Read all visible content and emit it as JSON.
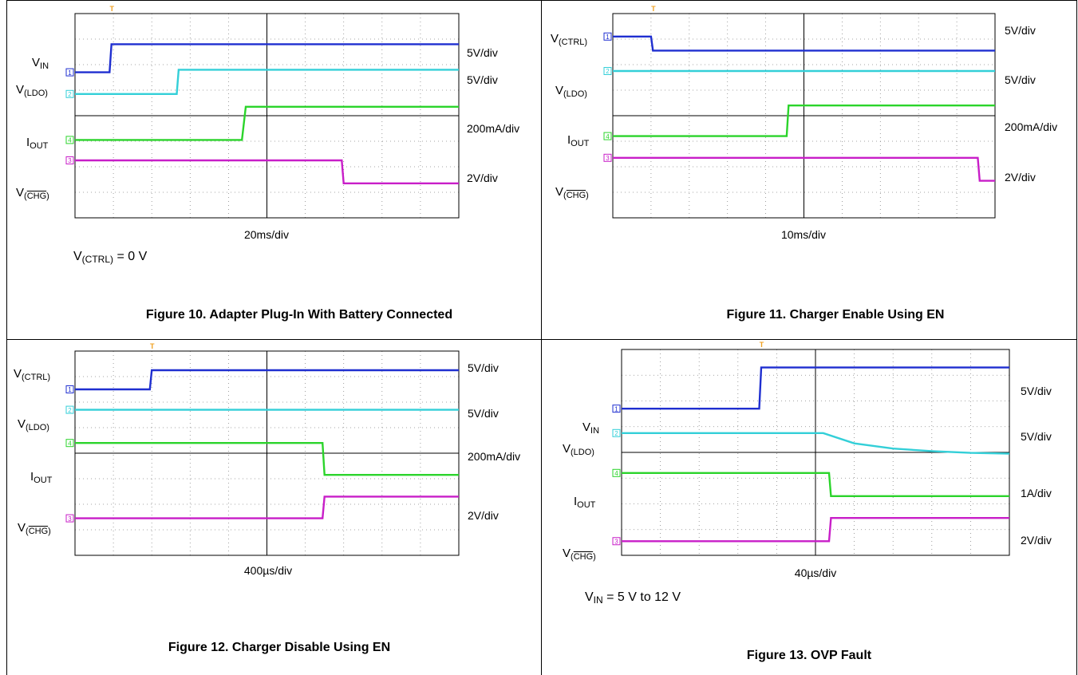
{
  "colors": {
    "ch1": "#1f2fd0",
    "ch2": "#33cfd8",
    "ch3": "#c81ec8",
    "ch4": "#2bd42b",
    "trigger": "#f0a020"
  },
  "panels": [
    {
      "id": "fig10",
      "caption": "Figure 10. Adapter Plug-In With Battery Connected",
      "time_div": "20ms/div",
      "note": {
        "main": "V",
        "sub": "(CTRL)",
        "tail": " = 0 V"
      },
      "labels": [
        {
          "main": "V",
          "sub": "IN",
          "ch": "1",
          "overline": false
        },
        {
          "main": "V",
          "sub": "(LDO)",
          "ch": "2",
          "overline": false
        },
        {
          "main": "I",
          "sub": "OUT",
          "ch": "4",
          "overline": false
        },
        {
          "main": "V",
          "sub": "CHG",
          "ch": "3",
          "overline": true
        }
      ],
      "scales": [
        "5V/div",
        "5V/div",
        "200mA/div",
        "2V/div"
      ]
    },
    {
      "id": "fig11",
      "caption": "Figure 11. Charger Enable Using EN",
      "time_div": "10ms/div",
      "note": null,
      "labels": [
        {
          "main": "V",
          "sub": "(CTRL)",
          "ch": "1",
          "overline": false
        },
        {
          "main": "V",
          "sub": "(LDO)",
          "ch": "2",
          "overline": false
        },
        {
          "main": "I",
          "sub": "OUT",
          "ch": "4",
          "overline": false
        },
        {
          "main": "V",
          "sub": "CHG",
          "ch": "3",
          "overline": true
        }
      ],
      "scales": [
        "5V/div",
        "5V/div",
        "200mA/div",
        "2V/div"
      ]
    },
    {
      "id": "fig12",
      "caption": "Figure 12. Charger Disable Using EN",
      "time_div": "400µs/div",
      "note": null,
      "labels": [
        {
          "main": "V",
          "sub": "(CTRL)",
          "ch": "1",
          "overline": false
        },
        {
          "main": "V",
          "sub": "(LDO)",
          "ch": "2",
          "overline": false
        },
        {
          "main": "I",
          "sub": "OUT",
          "ch": "4",
          "overline": false
        },
        {
          "main": "V",
          "sub": "CHG",
          "ch": "3",
          "overline": true
        }
      ],
      "scales": [
        "5V/div",
        "5V/div",
        "200mA/div",
        "2V/div"
      ]
    },
    {
      "id": "fig13",
      "caption": "Figure 13. OVP Fault",
      "time_div": "40µs/div",
      "note": {
        "main": "V",
        "sub": "IN",
        "tail": " = 5 V to 12 V"
      },
      "labels": [
        {
          "main": "V",
          "sub": "IN",
          "ch": "1",
          "overline": false
        },
        {
          "main": "V",
          "sub": "(LDO)",
          "ch": "2",
          "overline": false
        },
        {
          "main": "I",
          "sub": "OUT",
          "ch": "4",
          "overline": false
        },
        {
          "main": "V",
          "sub": "CHG",
          "ch": "3",
          "overline": true
        }
      ],
      "scales": [
        "5V/div",
        "5V/div",
        "1A/div",
        "2V/div"
      ]
    }
  ],
  "chart_data": [
    {
      "type": "line",
      "title": "Figure 10. Adapter Plug-In With Battery Connected",
      "x_unit": "div",
      "x_range": [
        0,
        10
      ],
      "y_unit": "div",
      "y_range": [
        -4,
        4
      ],
      "grid": true,
      "series": [
        {
          "name": "V(IN)",
          "channel": "1",
          "x": [
            0,
            0.9,
            0.95,
            10
          ],
          "y": [
            1.7,
            1.7,
            2.8,
            2.8
          ]
        },
        {
          "name": "V(LDO)",
          "channel": "2",
          "x": [
            0,
            2.65,
            2.7,
            10
          ],
          "y": [
            0.85,
            0.85,
            1.8,
            1.8
          ]
        },
        {
          "name": "I(OUT)",
          "channel": "4",
          "x": [
            0,
            4.35,
            4.45,
            10
          ],
          "y": [
            -0.95,
            -0.95,
            0.35,
            0.35
          ]
        },
        {
          "name": "V(CHG)",
          "channel": "3",
          "x": [
            0,
            6.95,
            7.0,
            10
          ],
          "y": [
            -1.75,
            -1.75,
            -2.65,
            -2.65
          ]
        }
      ]
    },
    {
      "type": "line",
      "title": "Figure 11. Charger Enable Using EN",
      "x_unit": "div",
      "x_range": [
        0,
        10
      ],
      "y_unit": "div",
      "y_range": [
        -4,
        4
      ],
      "grid": true,
      "series": [
        {
          "name": "V(CTRL)",
          "channel": "1",
          "x": [
            0,
            1.0,
            1.05,
            10
          ],
          "y": [
            3.1,
            3.1,
            2.55,
            2.55
          ]
        },
        {
          "name": "V(LDO)",
          "channel": "2",
          "x": [
            0,
            10
          ],
          "y": [
            1.75,
            1.75
          ]
        },
        {
          "name": "I(OUT)",
          "channel": "4",
          "x": [
            0,
            4.55,
            4.6,
            10
          ],
          "y": [
            -0.8,
            -0.8,
            0.4,
            0.4
          ]
        },
        {
          "name": "V(CHG)",
          "channel": "3",
          "x": [
            0,
            9.55,
            9.6,
            10
          ],
          "y": [
            -1.65,
            -1.65,
            -2.55,
            -2.55
          ]
        }
      ]
    },
    {
      "type": "line",
      "title": "Figure 12. Charger Disable Using EN",
      "x_unit": "div",
      "x_range": [
        0,
        10
      ],
      "y_unit": "div",
      "y_range": [
        -4,
        4
      ],
      "grid": true,
      "series": [
        {
          "name": "V(CTRL)",
          "channel": "1",
          "x": [
            0,
            1.95,
            2.0,
            10
          ],
          "y": [
            2.5,
            2.5,
            3.25,
            3.25
          ]
        },
        {
          "name": "V(LDO)",
          "channel": "2",
          "x": [
            0,
            10
          ],
          "y": [
            1.7,
            1.7
          ]
        },
        {
          "name": "I(OUT)",
          "channel": "4",
          "x": [
            0,
            6.45,
            6.5,
            10
          ],
          "y": [
            0.4,
            0.4,
            -0.85,
            -0.85
          ]
        },
        {
          "name": "V(CHG)",
          "channel": "3",
          "x": [
            0,
            6.45,
            6.5,
            10
          ],
          "y": [
            -2.55,
            -2.55,
            -1.7,
            -1.7
          ]
        }
      ]
    },
    {
      "type": "line",
      "title": "Figure 13. OVP Fault",
      "x_unit": "div",
      "x_range": [
        0,
        10
      ],
      "y_unit": "div",
      "y_range": [
        -4,
        4
      ],
      "grid": true,
      "series": [
        {
          "name": "V(IN)",
          "channel": "1",
          "x": [
            0,
            3.55,
            3.6,
            10
          ],
          "y": [
            1.7,
            1.7,
            3.3,
            3.3
          ]
        },
        {
          "name": "V(LDO)",
          "channel": "2",
          "x": [
            0,
            5.2,
            6.0,
            7.0,
            8.0,
            9.0,
            10
          ],
          "y": [
            0.75,
            0.75,
            0.35,
            0.15,
            0.05,
            -0.02,
            -0.05
          ]
        },
        {
          "name": "I(OUT)",
          "channel": "4",
          "x": [
            0,
            5.35,
            5.4,
            10
          ],
          "y": [
            -0.8,
            -0.8,
            -1.7,
            -1.7
          ]
        },
        {
          "name": "V(CHG)",
          "channel": "3",
          "x": [
            0,
            5.35,
            5.4,
            10
          ],
          "y": [
            -3.45,
            -3.45,
            -2.55,
            -2.55
          ]
        }
      ]
    }
  ]
}
